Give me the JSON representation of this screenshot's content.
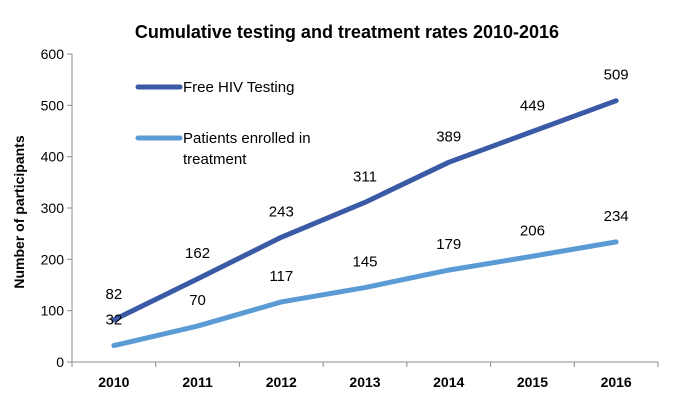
{
  "chart_data": {
    "type": "line",
    "title": "Cumulative testing and treatment rates 2010-2016",
    "ylabel": "Number of participants",
    "xlabel": "",
    "categories": [
      "2010",
      "2011",
      "2012",
      "2013",
      "2014",
      "2015",
      "2016"
    ],
    "ylim": [
      0,
      600
    ],
    "yticks": [
      0,
      100,
      200,
      300,
      400,
      500,
      600
    ],
    "grid": false,
    "legend_position": "top-left",
    "series": [
      {
        "name": "Free HIV Testing",
        "legend_label": [
          "Free HIV Testing"
        ],
        "color": "#3a5aa6",
        "values": [
          82,
          162,
          243,
          311,
          389,
          449,
          509
        ]
      },
      {
        "name": "Patients enrolled in treatment",
        "legend_label": [
          "Patients enrolled in",
          "treatment"
        ],
        "color": "#5b9bd5",
        "values": [
          32,
          70,
          117,
          145,
          179,
          206,
          234
        ]
      }
    ]
  }
}
